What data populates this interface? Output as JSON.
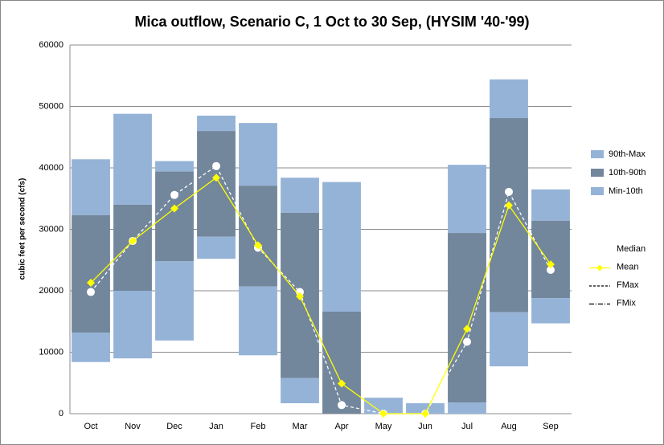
{
  "chart_data": {
    "type": "bar",
    "title": "Mica outflow, Scenario C, 1 Oct to 30 Sep, (HYSIM '40-'99)",
    "y_label": "cubic feet per second (cfs)",
    "categories": [
      "Oct",
      "Nov",
      "Dec",
      "Jan",
      "Feb",
      "Mar",
      "Apr",
      "May",
      "Jun",
      "Jul",
      "Aug",
      "Sep"
    ],
    "ylim": [
      0,
      60000
    ],
    "yticks": [
      0,
      10000,
      20000,
      30000,
      40000,
      50000,
      60000
    ],
    "grid": true,
    "ranges": [
      {
        "name": "90th-Max",
        "color": "#95b3d7",
        "low": [
          32300,
          34000,
          39400,
          46000,
          37100,
          32700,
          16600,
          0,
          0,
          29400,
          48100,
          31400
        ],
        "high": [
          41400,
          48800,
          41100,
          48500,
          47300,
          38400,
          37700,
          2600,
          1700,
          40500,
          54400,
          36500
        ]
      },
      {
        "name": "10th-90th",
        "color": "#72869c",
        "low": [
          13200,
          20000,
          24800,
          28800,
          20700,
          5800,
          0,
          0,
          0,
          1800,
          16500,
          18800
        ],
        "high": [
          32300,
          34000,
          39400,
          46000,
          37100,
          32700,
          16600,
          0,
          0,
          29400,
          48100,
          31400
        ]
      },
      {
        "name": "Min-10th",
        "color": "#95b3d7",
        "low": [
          8400,
          9000,
          11900,
          25200,
          9500,
          1700,
          0,
          0,
          0,
          0,
          7700,
          14700
        ],
        "high": [
          13200,
          20000,
          24800,
          28800,
          20700,
          5800,
          0,
          0,
          0,
          1800,
          16500,
          18800
        ]
      }
    ],
    "series": [
      {
        "name": "Median",
        "color": "#ffffff",
        "dash": "4,3",
        "marker": "circle",
        "values": [
          19800,
          28100,
          35600,
          40300,
          27000,
          19800,
          1400,
          0,
          0,
          11700,
          36100,
          23400
        ]
      },
      {
        "name": "Mean",
        "color": "#ffff00",
        "marker": "diamond",
        "values": [
          21300,
          28100,
          33400,
          38400,
          27400,
          19100,
          4900,
          0,
          0,
          13800,
          33900,
          24300
        ]
      },
      {
        "name": "FMax",
        "color": "#000000",
        "dash": "3,2",
        "values": [
          null,
          null,
          null,
          null,
          null,
          null,
          null,
          null,
          null,
          null,
          null,
          null
        ]
      },
      {
        "name": "FMix",
        "color": "#000000",
        "dash": "6,2,1,2",
        "values": [
          null,
          null,
          null,
          null,
          null,
          null,
          null,
          null,
          null,
          null,
          null,
          null
        ]
      }
    ]
  }
}
